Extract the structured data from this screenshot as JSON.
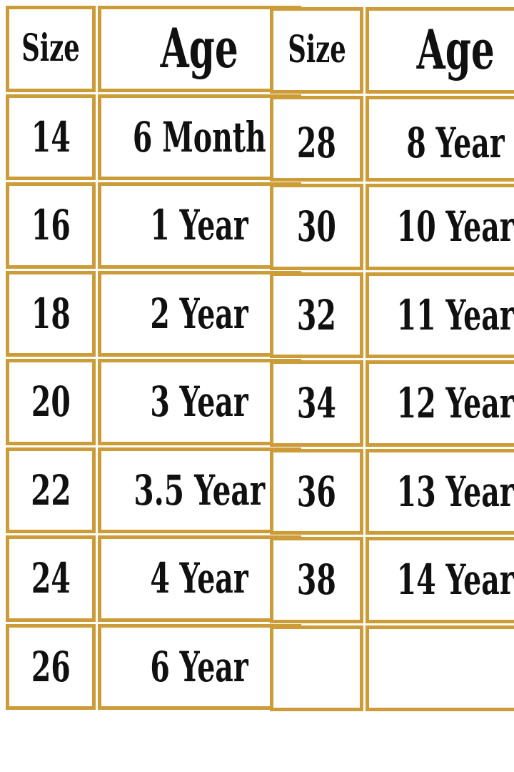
{
  "colors": {
    "border_gold": "#CC9C38",
    "text": "#101010",
    "background": "#FFFFFF"
  },
  "tables": [
    {
      "header": {
        "size": "Size",
        "age": "Age"
      },
      "rows": [
        {
          "size": "14",
          "age": "6 Month"
        },
        {
          "size": "16",
          "age": "1 Year"
        },
        {
          "size": "18",
          "age": "2 Year"
        },
        {
          "size": "20",
          "age": "3 Year"
        },
        {
          "size": "22",
          "age": "3.5 Year"
        },
        {
          "size": "24",
          "age": "4 Year"
        },
        {
          "size": "26",
          "age": "6 Year"
        }
      ]
    },
    {
      "header": {
        "size": "Size",
        "age": "Age"
      },
      "rows": [
        {
          "size": "28",
          "age": "8 Year"
        },
        {
          "size": "30",
          "age": "10 Year"
        },
        {
          "size": "32",
          "age": "11 Year"
        },
        {
          "size": "34",
          "age": "12 Year"
        },
        {
          "size": "36",
          "age": "13 Year"
        },
        {
          "size": "38",
          "age": "14 Year"
        },
        {
          "size": "",
          "age": ""
        }
      ]
    }
  ],
  "chart_data": {
    "type": "table",
    "title": "",
    "columns": [
      "Size",
      "Age"
    ],
    "rows": [
      [
        "14",
        "6 Month"
      ],
      [
        "16",
        "1 Year"
      ],
      [
        "18",
        "2 Year"
      ],
      [
        "20",
        "3 Year"
      ],
      [
        "22",
        "3.5 Year"
      ],
      [
        "24",
        "4 Year"
      ],
      [
        "26",
        "6 Year"
      ],
      [
        "28",
        "8 Year"
      ],
      [
        "30",
        "10 Year"
      ],
      [
        "32",
        "11 Year"
      ],
      [
        "34",
        "12 Year"
      ],
      [
        "36",
        "13 Year"
      ],
      [
        "38",
        "14 Year"
      ]
    ]
  }
}
